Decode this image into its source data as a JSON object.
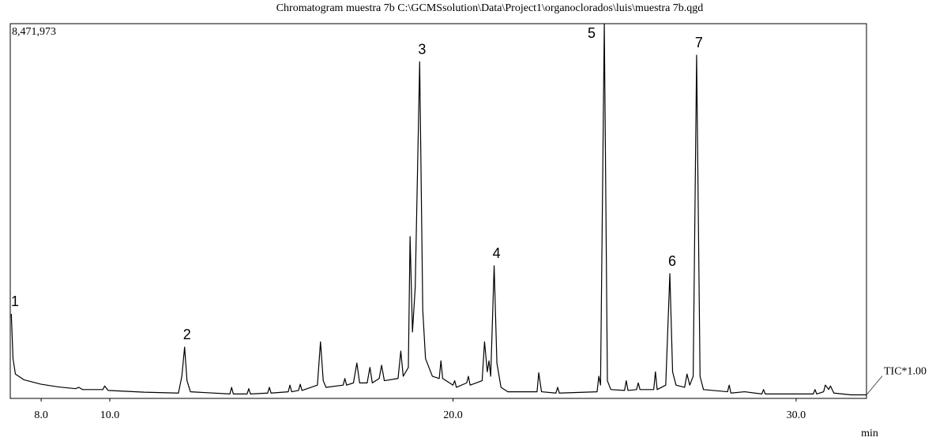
{
  "chart_data": {
    "type": "line",
    "title": "Chromatogram muestra 7b C:\\GCMSsolution\\Data\\Project1\\organoclorados\\luis\\muestra 7b.qgd",
    "x_label": "min",
    "xlim": [
      7.1,
      32.05
    ],
    "ylim": [
      0,
      8471973
    ],
    "xticks": [
      {
        "value": 8,
        "label": "8.0"
      },
      {
        "value": 10,
        "label": "10.0"
      },
      {
        "value": 20,
        "label": "20.0"
      },
      {
        "value": 30,
        "label": "30.0"
      }
    ],
    "yticks": [
      {
        "value": 8471973,
        "label": "8,471,973"
      }
    ],
    "series": [
      {
        "name": "TIC*1.00",
        "color": "#000000",
        "x": [
          7.13,
          7.18,
          7.25,
          7.5,
          8.0,
          8.5,
          9.0,
          9.1,
          9.2,
          9.8,
          9.85,
          9.95,
          11.0,
          12.0,
          12.1,
          12.18,
          12.25,
          12.35,
          13.5,
          13.55,
          13.6,
          14.0,
          14.05,
          14.1,
          14.6,
          14.65,
          14.7,
          15.2,
          15.25,
          15.3,
          15.5,
          15.55,
          15.6,
          16.05,
          16.14,
          16.22,
          16.3,
          16.8,
          16.85,
          16.9,
          17.1,
          17.2,
          17.28,
          17.5,
          17.58,
          17.65,
          17.85,
          17.92,
          18.0,
          18.4,
          18.48,
          18.55,
          18.7,
          18.75,
          18.82,
          18.9,
          19.03,
          19.12,
          19.2,
          19.4,
          19.6,
          19.65,
          19.7,
          20.0,
          20.05,
          20.1,
          20.4,
          20.45,
          20.5,
          20.85,
          20.92,
          21.0,
          21.05,
          21.1,
          21.2,
          21.28,
          21.4,
          21.6,
          22.45,
          22.5,
          22.58,
          23.0,
          23.05,
          23.1,
          24.2,
          24.25,
          24.3,
          24.41,
          24.5,
          24.6,
          25.0,
          25.05,
          25.1,
          25.35,
          25.4,
          25.45,
          25.85,
          25.9,
          25.95,
          26.2,
          26.32,
          26.4,
          26.5,
          26.75,
          26.82,
          26.9,
          27.0,
          27.1,
          27.2,
          27.3,
          28.0,
          28.05,
          28.1,
          28.5,
          29.0,
          29.05,
          29.1,
          30.5,
          30.55,
          30.6,
          30.8,
          30.85,
          30.95,
          31.0,
          31.1,
          31.6,
          32.05
        ],
        "values": [
          1910000,
          900000,
          550000,
          420000,
          320000,
          260000,
          220000,
          250000,
          200000,
          200000,
          280000,
          180000,
          140000,
          120000,
          500000,
          1160000,
          400000,
          150000,
          100000,
          250000,
          100000,
          100000,
          220000,
          100000,
          120000,
          250000,
          120000,
          150000,
          300000,
          150000,
          180000,
          320000,
          180000,
          300000,
          1280000,
          400000,
          250000,
          300000,
          450000,
          300000,
          350000,
          800000,
          350000,
          350000,
          700000,
          350000,
          450000,
          750000,
          400000,
          450000,
          1070000,
          500000,
          700000,
          3660000,
          1500000,
          2500000,
          7610000,
          2000000,
          900000,
          500000,
          450000,
          850000,
          450000,
          300000,
          400000,
          250000,
          350000,
          500000,
          300000,
          400000,
          1280000,
          600000,
          850000,
          500000,
          3000000,
          800000,
          250000,
          150000,
          150000,
          580000,
          150000,
          120000,
          250000,
          120000,
          150000,
          500000,
          300000,
          8471973,
          400000,
          200000,
          180000,
          400000,
          180000,
          200000,
          350000,
          200000,
          200000,
          600000,
          200000,
          300000,
          2820000,
          600000,
          300000,
          250000,
          550000,
          300000,
          500000,
          7760000,
          500000,
          200000,
          150000,
          300000,
          120000,
          150000,
          100000,
          200000,
          100000,
          100000,
          200000,
          100000,
          150000,
          300000,
          200000,
          280000,
          120000,
          80000,
          80000
        ]
      }
    ],
    "annotations": [
      {
        "text": "1",
        "x": 7.13,
        "y": 1910000
      },
      {
        "text": "2",
        "x": 12.18,
        "y": 1160000
      },
      {
        "text": "3",
        "x": 19.03,
        "y": 7610000
      },
      {
        "text": "4",
        "x": 21.2,
        "y": 3000000
      },
      {
        "text": "5",
        "x": 24.41,
        "y": 8471973
      },
      {
        "text": "6",
        "x": 26.32,
        "y": 2820000
      },
      {
        "text": "7",
        "x": 27.1,
        "y": 7760000
      }
    ]
  }
}
